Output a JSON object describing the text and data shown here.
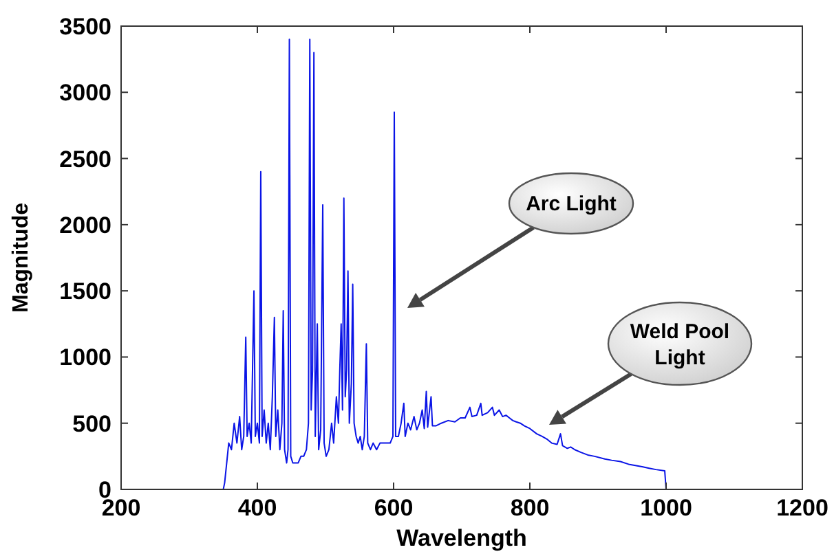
{
  "chart_data": {
    "type": "line",
    "xlabel": "Wavelength",
    "ylabel": "Magnitude",
    "xlim": [
      200,
      1200
    ],
    "xticks": [
      200,
      400,
      600,
      800,
      1000,
      1200
    ],
    "ylim": [
      0,
      3500
    ],
    "yticks": [
      0,
      500,
      1000,
      1500,
      2000,
      2500,
      3000,
      3500
    ],
    "grid": false,
    "marker": "none",
    "line_style": "solid",
    "annotations": [
      "Arc Light",
      "Weld Pool Light"
    ],
    "series": [
      {
        "color": "#0a14e6",
        "x": [
          350,
          352,
          356,
          358,
          362,
          366,
          370,
          374,
          377,
          380,
          383,
          385,
          388,
          391,
          395,
          397,
          400,
          403,
          405,
          407,
          410,
          413,
          416,
          419,
          422,
          425,
          427,
          430,
          433,
          436,
          438,
          440,
          443,
          445,
          447,
          449,
          452,
          456,
          460,
          464,
          468,
          472,
          475,
          477,
          479,
          481,
          483,
          485,
          488,
          490,
          493,
          496,
          498,
          501,
          505,
          509,
          512,
          516,
          519,
          521,
          523,
          525,
          527,
          529,
          531,
          533,
          535,
          538,
          540,
          542,
          545,
          548,
          551,
          554,
          557,
          560,
          562,
          566,
          570,
          575,
          580,
          585,
          590,
          595,
          599,
          601,
          603,
          607,
          611,
          615,
          617,
          621,
          625,
          630,
          634,
          638,
          642,
          645,
          648,
          650,
          655,
          657,
          662,
          670,
          680,
          690,
          698,
          705,
          712,
          715,
          722,
          728,
          730,
          738,
          745,
          748,
          755,
          760,
          765,
          770,
          775,
          780,
          786,
          792,
          800,
          810,
          818,
          825,
          832,
          840,
          845,
          848,
          855,
          860,
          866,
          875,
          885,
          895,
          910,
          920,
          933,
          945,
          955,
          966,
          975,
          985,
          998,
          1000
        ],
        "values": [
          0,
          50,
          250,
          350,
          300,
          500,
          350,
          550,
          300,
          400,
          1150,
          400,
          500,
          350,
          1500,
          400,
          500,
          350,
          2400,
          400,
          600,
          350,
          500,
          300,
          700,
          1300,
          400,
          600,
          300,
          500,
          1350,
          300,
          200,
          300,
          3400,
          250,
          200,
          200,
          200,
          250,
          250,
          300,
          500,
          3400,
          600,
          900,
          3300,
          400,
          1250,
          300,
          450,
          2150,
          350,
          250,
          300,
          500,
          350,
          700,
          500,
          900,
          1250,
          600,
          2200,
          700,
          900,
          1650,
          500,
          800,
          1550,
          500,
          400,
          350,
          400,
          300,
          400,
          1100,
          350,
          300,
          350,
          300,
          350,
          350,
          350,
          350,
          400,
          2850,
          400,
          400,
          500,
          650,
          400,
          500,
          450,
          550,
          450,
          500,
          600,
          460,
          740,
          470,
          700,
          480,
          480,
          500,
          520,
          510,
          540,
          540,
          620,
          550,
          560,
          650,
          560,
          580,
          620,
          560,
          600,
          550,
          560,
          540,
          520,
          510,
          500,
          480,
          460,
          420,
          400,
          380,
          350,
          340,
          420,
          330,
          310,
          320,
          300,
          280,
          260,
          250,
          230,
          220,
          210,
          190,
          180,
          170,
          160,
          150,
          140,
          0
        ]
      }
    ]
  }
}
